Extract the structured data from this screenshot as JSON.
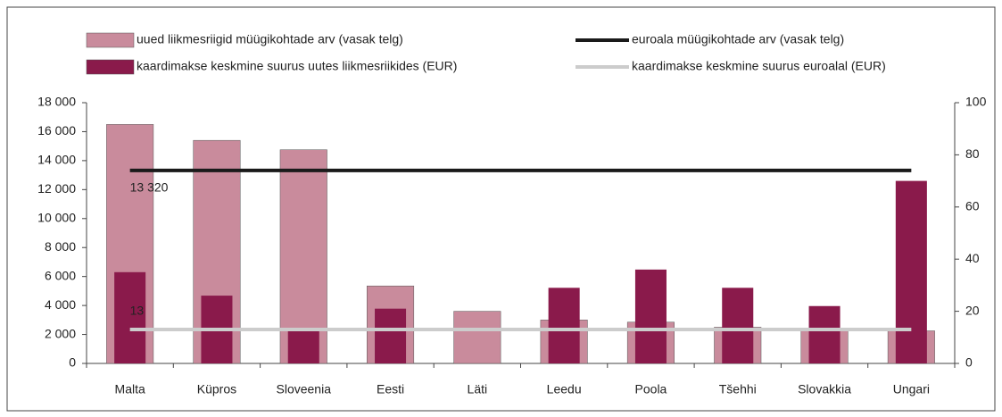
{
  "chart_data": {
    "type": "bar",
    "categories": [
      "Malta",
      "Küpros",
      "Sloveenia",
      "Eesti",
      "Läti",
      "Leedu",
      "Poola",
      "Tšehhi",
      "Slovakkia",
      "Ungari"
    ],
    "series": [
      {
        "name": "uued liikmesriigid müügikohtade arv (vasak telg)",
        "type": "bar",
        "axis": "y",
        "color": "#c98b9c",
        "values": [
          16500,
          15400,
          14750,
          5350,
          3600,
          3000,
          2850,
          2500,
          2300,
          2250
        ]
      },
      {
        "name": "euroala müügikohtade arv (vasak telg)",
        "type": "line",
        "axis": "y",
        "color": "#1a1a1a",
        "values": [
          13320,
          13320,
          13320,
          13320,
          13320,
          13320,
          13320,
          13320,
          13320,
          13320
        ],
        "value_labels": [
          "13 320",
          null,
          null,
          null,
          null,
          null,
          null,
          null,
          null,
          null
        ]
      },
      {
        "name": "kaardimakse keskmine suurus uutes liikmesriikides (EUR)",
        "type": "bar",
        "axis": "y2",
        "color": "#8a1a4b",
        "values": [
          35,
          26,
          13,
          21,
          null,
          29,
          36,
          29,
          22,
          70
        ]
      },
      {
        "name": "kaardimakse keskmine suurus euroalal (EUR)",
        "type": "line",
        "axis": "y2",
        "color": "#cccccc",
        "values": [
          13,
          13,
          13,
          13,
          13,
          13,
          13,
          13,
          13,
          13
        ],
        "value_labels": [
          "13",
          null,
          null,
          null,
          null,
          null,
          null,
          null,
          null,
          null
        ]
      }
    ],
    "ylim": [
      0,
      18000
    ],
    "yticks": [
      0,
      {
        "value": 2000,
        "label": "2 000"
      },
      {
        "value": 4000,
        "label": "4 000"
      },
      {
        "value": 6000,
        "label": "6 000"
      },
      {
        "value": 8000,
        "label": "8 000"
      },
      {
        "value": 10000,
        "label": "10 000"
      },
      {
        "value": 12000,
        "label": "12 000"
      },
      {
        "value": 14000,
        "label": "14 000"
      },
      {
        "value": 16000,
        "label": "16 000"
      },
      {
        "value": 18000,
        "label": "18 000"
      }
    ],
    "y2lim": [
      0,
      100
    ],
    "y2ticks": [
      0,
      20,
      40,
      60,
      80,
      100
    ],
    "grid": false
  }
}
